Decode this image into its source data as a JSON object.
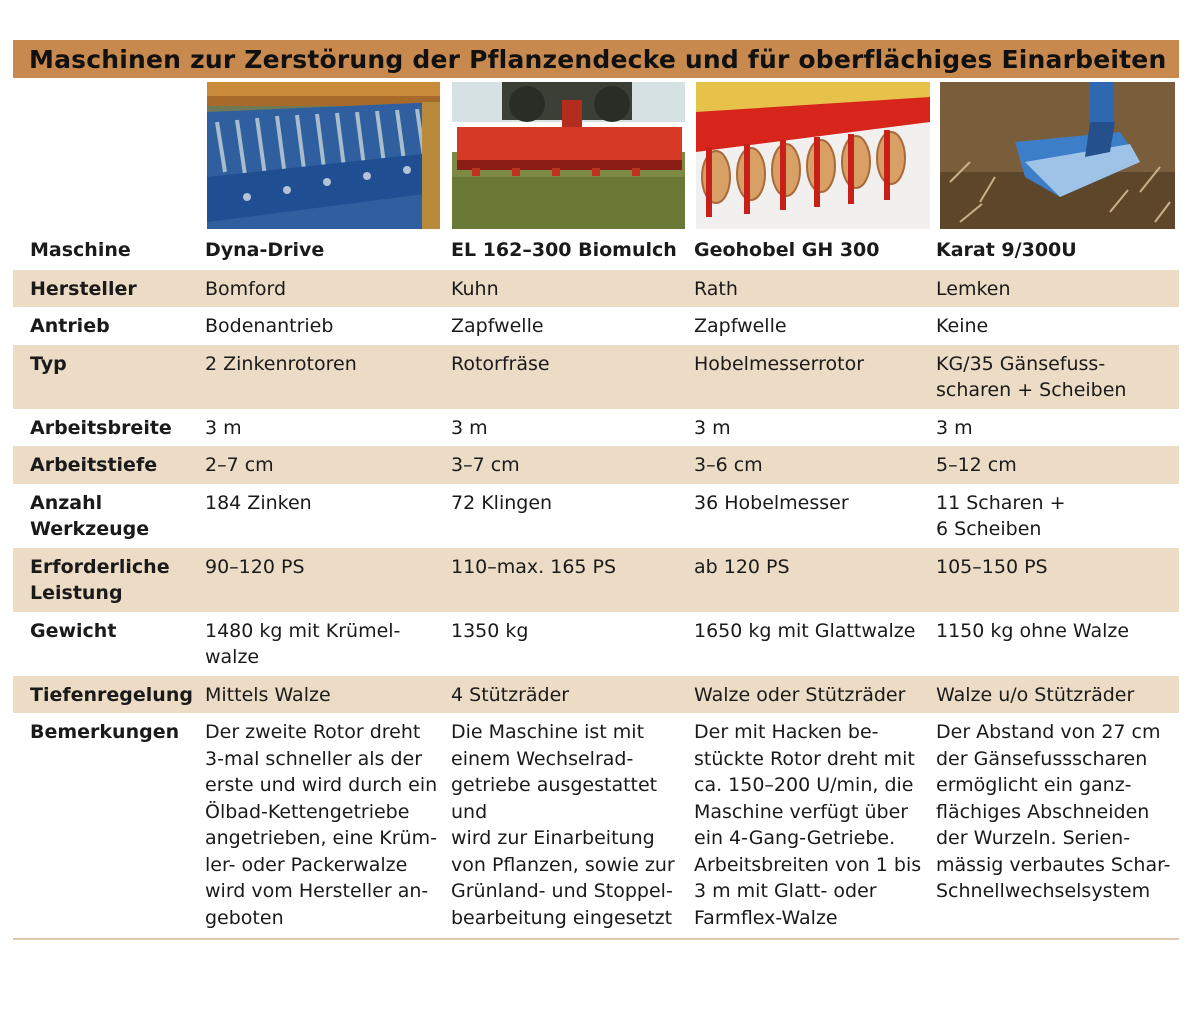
{
  "title": "Maschinen zur Zerstörung der Pflanzendecke und für oberflächiges Einarbeiten",
  "photos": [
    {
      "icon": "rotor-tine-machine-photo",
      "colors": {
        "frame": "#1f5ea8",
        "tines": "#9fb4c8"
      }
    },
    {
      "icon": "rotary-tiller-photo",
      "colors": {
        "body": "#d23a26",
        "field": "#6b7a3a"
      }
    },
    {
      "icon": "planer-rotor-photo",
      "colors": {
        "body": "#d8251c",
        "blades": "#d9a066"
      }
    },
    {
      "icon": "goosefoot-share-photo",
      "colors": {
        "share": "#3d7ec8",
        "soil": "#6e5233"
      }
    }
  ],
  "rows": [
    {
      "label": "Maschine",
      "c1": "Dyna-Drive",
      "c2": "EL 162–300 Biomulch",
      "c3": "Geohobel GH 300",
      "c4": "Karat 9/300U",
      "shade": false,
      "header": true
    },
    {
      "label": "Hersteller",
      "c1": "Bomford",
      "c2": "Kuhn",
      "c3": "Rath",
      "c4": "Lemken",
      "shade": true
    },
    {
      "label": "Antrieb",
      "c1": "Bodenantrieb",
      "c2": "Zapfwelle",
      "c3": "Zapfwelle",
      "c4": "Keine",
      "shade": false
    },
    {
      "label": "Typ",
      "c1": "2 Zinkenrotoren",
      "c2": "Rotorfräse",
      "c3": "Hobelmesserrotor",
      "c4": "KG/35 Gänsefuss-\nscharen + Scheiben",
      "shade": true
    },
    {
      "label": "Arbeitsbreite",
      "c1": "3 m",
      "c2": "3 m",
      "c3": "3 m",
      "c4": "3 m",
      "shade": false
    },
    {
      "label": "Arbeitstiefe",
      "c1": "2–7 cm",
      "c2": "3–7 cm",
      "c3": "3–6 cm",
      "c4": "5–12 cm",
      "shade": true
    },
    {
      "label": "Anzahl\nWerkzeuge",
      "c1": "184 Zinken",
      "c2": "72 Klingen",
      "c3": "36 Hobelmesser",
      "c4": "11 Scharen +\n6 Scheiben",
      "shade": false
    },
    {
      "label": "Erforderliche\nLeistung",
      "c1": "90–120 PS",
      "c2": "110–max. 165 PS",
      "c3": "ab 120  PS",
      "c4": "105–150 PS",
      "shade": true
    },
    {
      "label": "Gewicht",
      "c1": "1480 kg mit Krümel-\nwalze",
      "c2": "1350 kg",
      "c3": "1650 kg mit Glattwalze",
      "c4": "1150 kg ohne Walze",
      "shade": false
    },
    {
      "label": "Tiefenregelung",
      "c1": "Mittels Walze",
      "c2": "4 Stützräder",
      "c3": "Walze oder Stützräder",
      "c4": "Walze u/o Stützräder",
      "shade": true
    },
    {
      "label": "Bemerkungen",
      "c1": "Der zweite Rotor dreht\n3-mal schneller als der\nerste und wird durch ein\nÖlbad-Kettengetriebe\nangetrieben, eine Krüm-\nler- oder Packerwalze\nwird vom Hersteller an-\ngeboten",
      "c2": "Die Maschine ist mit\neinem Wechselrad-\ngetriebe ausgestattet und\nwird zur Einarbeitung\nvon Pflanzen, sowie zur\nGrünland- und Stoppel-\nbearbeitung eingesetzt",
      "c3": "Der mit Hacken be-\nstückte Rotor dreht mit\nca. 150–200 U/min, die\nMaschine verfügt über\nein 4-Gang-Getriebe.\nArbeitsbreiten von 1 bis\n3 m mit Glatt- oder\nFarmflex-Walze",
      "c4": "Der Abstand von 27 cm\nder Gänsefussscharen\nermöglicht ein ganz-\nflächiges Abschneiden\nder Wurzeln. Serien-\nmässig verbautes Schar-\nSchnellwechselsystem",
      "shade": false
    }
  ]
}
